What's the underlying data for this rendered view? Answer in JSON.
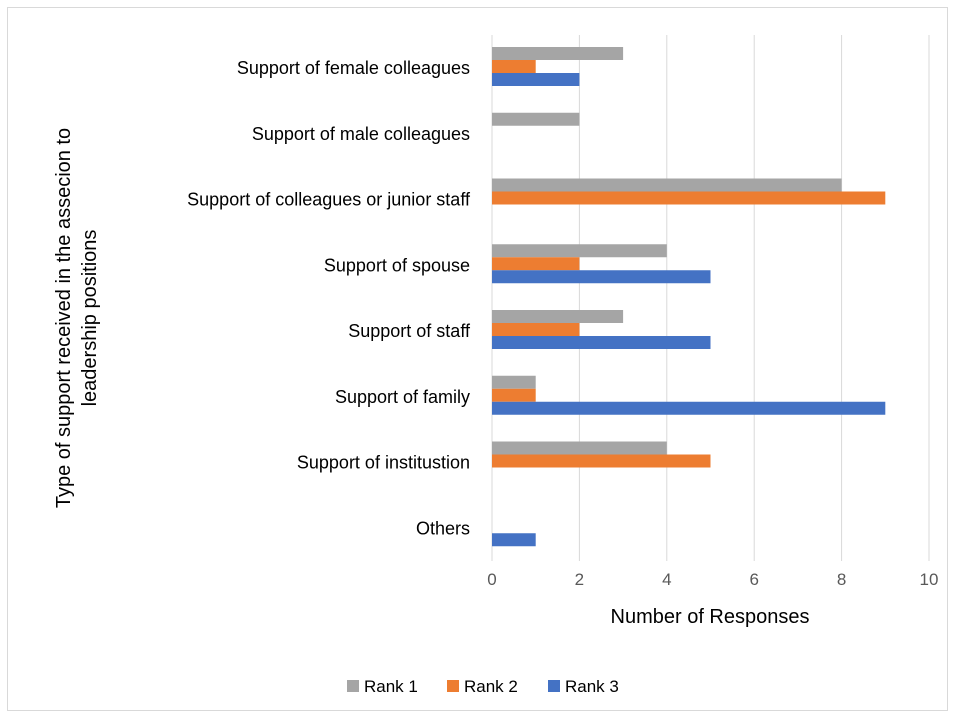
{
  "chart_data": {
    "type": "bar",
    "orientation": "horizontal",
    "categories": [
      "Support of female colleagues",
      "Support of male colleagues",
      "Support of colleagues or junior staff",
      "Support of spouse",
      "Support of staff",
      "Support of family",
      "Support of institustion",
      "Others"
    ],
    "series": [
      {
        "name": "Rank 1",
        "color": "#a5a5a5",
        "values": [
          3,
          2,
          8,
          4,
          3,
          1,
          4,
          0
        ]
      },
      {
        "name": "Rank 2",
        "color": "#ed7d31",
        "values": [
          1,
          0,
          9,
          2,
          2,
          1,
          5,
          0
        ]
      },
      {
        "name": "Rank 3",
        "color": "#4472c4",
        "values": [
          2,
          0,
          0,
          5,
          5,
          9,
          0,
          1
        ]
      }
    ],
    "xlabel": "Number of Responses",
    "ylabel_lines": [
      "Type of support received in the assecion to",
      "leadership positions"
    ],
    "xlim": [
      0,
      10
    ],
    "xticks": [
      "0",
      "2",
      "4",
      "6",
      "8",
      "10"
    ],
    "grid": "vertical",
    "legend_position": "bottom"
  }
}
